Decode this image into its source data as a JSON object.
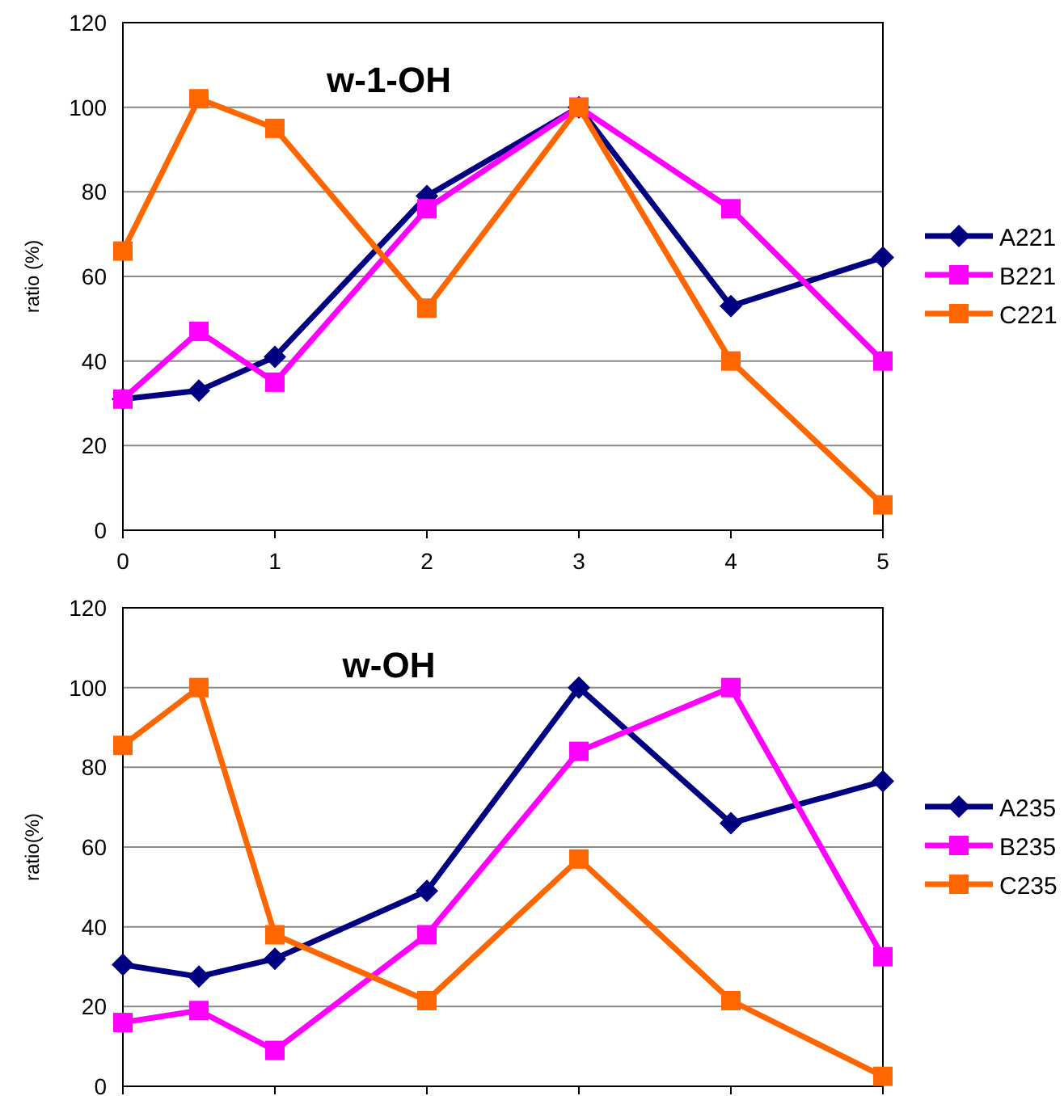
{
  "chart_data": [
    {
      "type": "line",
      "title": "w-1-OH",
      "ylabel": "ratio (%)",
      "x": [
        0,
        0.5,
        1,
        2,
        3,
        4,
        5
      ],
      "xlim": [
        0,
        5
      ],
      "xticks": [
        0,
        1,
        2,
        3,
        4,
        5
      ],
      "ylim": [
        0,
        120
      ],
      "yticks": [
        0,
        20,
        40,
        60,
        80,
        100,
        120
      ],
      "grid": "y",
      "legend": "right",
      "line_style": "solid",
      "series": [
        {
          "name": "A221",
          "color": "#000080",
          "marker": "diamond",
          "values": [
            31,
            33,
            41,
            79,
            100,
            53,
            64.5
          ]
        },
        {
          "name": "B221",
          "color": "#ff00ff",
          "marker": "square",
          "values": [
            31,
            47,
            35,
            76,
            100,
            76,
            40
          ]
        },
        {
          "name": "C221",
          "color": "#ff6600",
          "marker": "square",
          "values": [
            66,
            102,
            95,
            52.5,
            100,
            40,
            6
          ]
        }
      ]
    },
    {
      "type": "line",
      "title": "w-OH",
      "ylabel": "ratio(%)",
      "x": [
        0,
        0.5,
        1,
        2,
        3,
        4,
        5
      ],
      "xlim": [
        0,
        5
      ],
      "xticks": [
        {
          "value": 0,
          "label": null
        },
        {
          "value": 1,
          "label": null
        },
        {
          "value": 2,
          "label": null
        },
        {
          "value": 3,
          "label": null
        },
        {
          "value": 4,
          "label": null
        },
        {
          "value": 5,
          "label": null
        }
      ],
      "tick_labels": "y",
      "ylim": [
        0,
        120
      ],
      "yticks": [
        0,
        20,
        40,
        60,
        80,
        100,
        120
      ],
      "grid": "y",
      "legend": "right",
      "line_style": "solid",
      "series": [
        {
          "name": "A235",
          "color": "#000080",
          "marker": "diamond",
          "values": [
            30.5,
            27.5,
            32,
            49,
            100,
            66,
            76.5
          ]
        },
        {
          "name": "B235",
          "color": "#ff00ff",
          "marker": "square",
          "values": [
            16,
            19,
            9,
            38,
            84,
            100,
            32.5
          ]
        },
        {
          "name": "C235",
          "color": "#ff6600",
          "marker": "square",
          "values": [
            85.5,
            100,
            38,
            21.5,
            57,
            21.5,
            2.5
          ]
        }
      ]
    }
  ]
}
